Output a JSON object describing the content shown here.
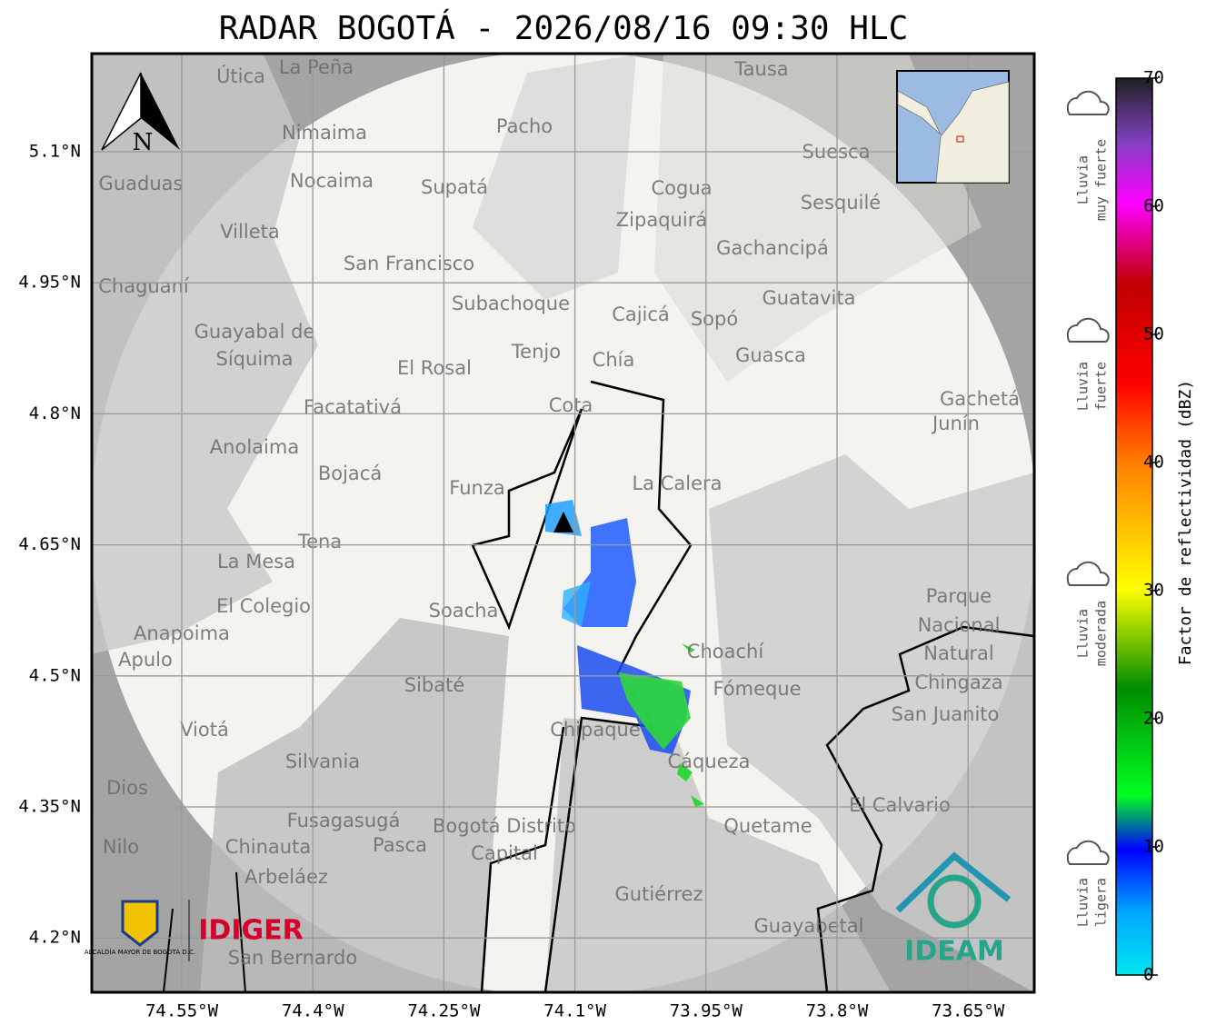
{
  "title": "RADAR BOGOTÁ - 2026/08/16 09:30 HLC",
  "map": {
    "north_label": "N",
    "lat_ticks": [
      {
        "value": 5.1,
        "label": "5.1°N"
      },
      {
        "value": 4.95,
        "label": "4.95°N"
      },
      {
        "value": 4.8,
        "label": "4.8°N"
      },
      {
        "value": 4.65,
        "label": "4.65°N"
      },
      {
        "value": 4.5,
        "label": "4.5°N"
      },
      {
        "value": 4.35,
        "label": "4.35°N"
      },
      {
        "value": 4.2,
        "label": "4.2°N"
      }
    ],
    "lon_ticks": [
      {
        "value": -74.55,
        "label": "74.55°W"
      },
      {
        "value": -74.4,
        "label": "74.4°W"
      },
      {
        "value": -74.25,
        "label": "74.25°W"
      },
      {
        "value": -74.1,
        "label": "74.1°W"
      },
      {
        "value": -73.95,
        "label": "73.95°W"
      },
      {
        "value": -73.8,
        "label": "73.8°W"
      },
      {
        "value": -73.65,
        "label": "73.65°W"
      }
    ],
    "places": [
      "La Peña",
      "Útica",
      "Tausa",
      "Pacho",
      "Nimaima",
      "Nocaima",
      "Supatá",
      "Guaduas",
      "Suesca",
      "Cogua",
      "Sesquilé",
      "Zipaquirá",
      "Villeta",
      "Gachancipá",
      "San Francisco",
      "Chaguaní",
      "Guatavita",
      "Subachoque",
      "Cajicá",
      "Sopó",
      "Guayabal de",
      "Síquima",
      "Tenjo",
      "Chía",
      "Guasca",
      "El Rosal",
      "Facatativá",
      "Cota",
      "Gachetá",
      "Junín",
      "Anolaima",
      "Bojacá",
      "Funza",
      "La Calera",
      "Tena",
      "La Mesa",
      "Soacha",
      "Parque",
      "Nacional",
      "Natural",
      "Chingaza",
      "El Colegio",
      "Anapoima",
      "Apulo",
      "Choachí",
      "Sibaté",
      "Fómeque",
      "San Juanito",
      "Viotá",
      "Chipaque",
      "Cáqueza",
      "Silvania",
      "Dios",
      "El Calvario",
      "Fusagasugá",
      "Bogotá Distrito",
      "Capital",
      "Quetame",
      "Nilo",
      "Chinauta",
      "Pasca",
      "Arbeláez",
      "Gutiérrez",
      "Guayabetal",
      "San Bernardo"
    ]
  },
  "colorbar": {
    "label": "Factor de reflectividad (dBZ)",
    "lim": [
      0,
      70
    ],
    "ticks": [
      0,
      10,
      20,
      30,
      40,
      50,
      60,
      70
    ],
    "categories": [
      [
        "Lluvia",
        "muy fuerte"
      ],
      [
        "Lluvia",
        "fuerte"
      ],
      [
        "Lluvia",
        "moderada"
      ],
      [
        "Lluvia",
        "ligera"
      ]
    ]
  },
  "logos": {
    "alcaldia": "ALCALDÍA MAYOR DE BOGOTÁ D.C.",
    "idiger": "IDIGER",
    "ideam": "IDEAM"
  }
}
